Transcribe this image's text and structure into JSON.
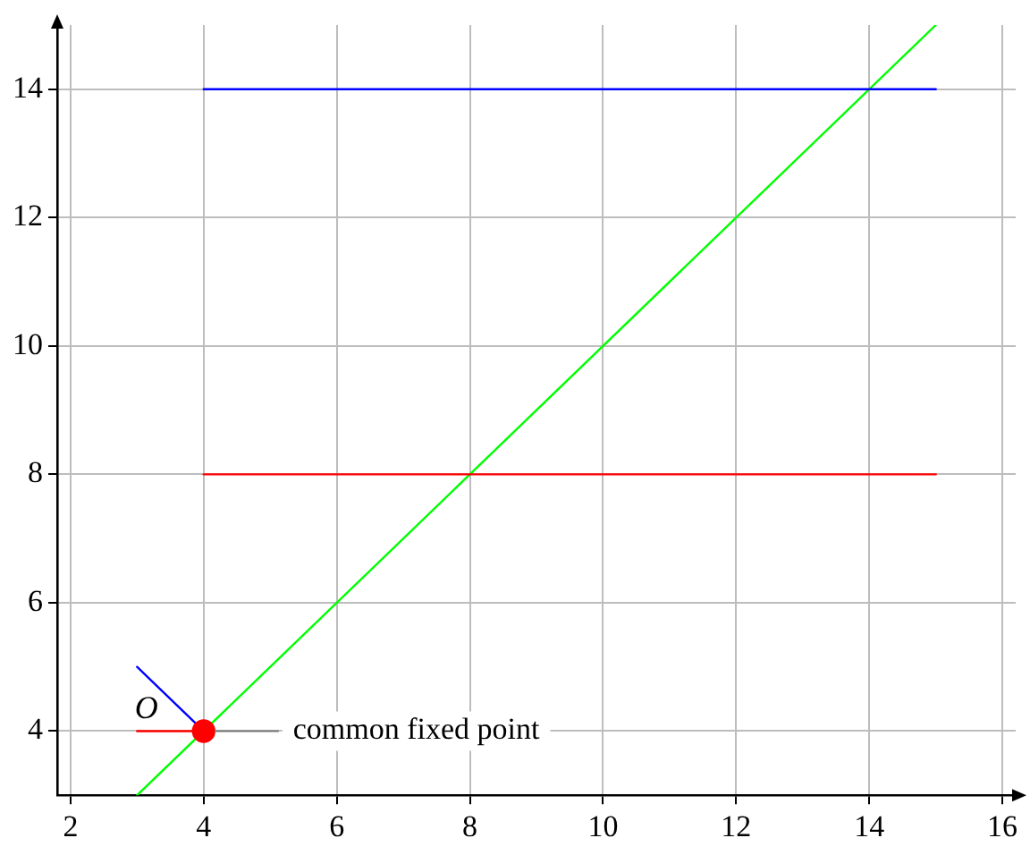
{
  "chart_data": {
    "type": "line",
    "series": [
      {
        "color": "#0000ff",
        "x": [
          4,
          15
        ],
        "values": [
          14,
          14
        ]
      },
      {
        "color": "#ff0000",
        "x": [
          4,
          15
        ],
        "values": [
          8,
          8
        ]
      },
      {
        "color": "#00ff00",
        "x": [
          3,
          15
        ],
        "values": [
          3,
          15
        ]
      },
      {
        "color": "#0000ff",
        "x": [
          3,
          4
        ],
        "values": [
          5,
          4
        ]
      },
      {
        "color": "#ff0000",
        "x": [
          3,
          4
        ],
        "values": [
          4,
          4
        ]
      },
      {
        "type": "scatter",
        "color": "#ff0000",
        "marker": "circle",
        "x": [
          4
        ],
        "values": [
          4
        ]
      }
    ],
    "xlim": [
      1.8,
      16.2
    ],
    "ylim": [
      3,
      15
    ],
    "xticks": [
      2,
      4,
      6,
      8,
      10,
      12,
      14,
      16
    ],
    "yticks": [
      4,
      6,
      8,
      10,
      12,
      14
    ],
    "grid": true,
    "line_style": "solid",
    "annotations": [
      {
        "text": "O",
        "x": 4,
        "y": 4
      },
      {
        "text": "common fixed point",
        "x": 4,
        "y": 4
      }
    ]
  }
}
